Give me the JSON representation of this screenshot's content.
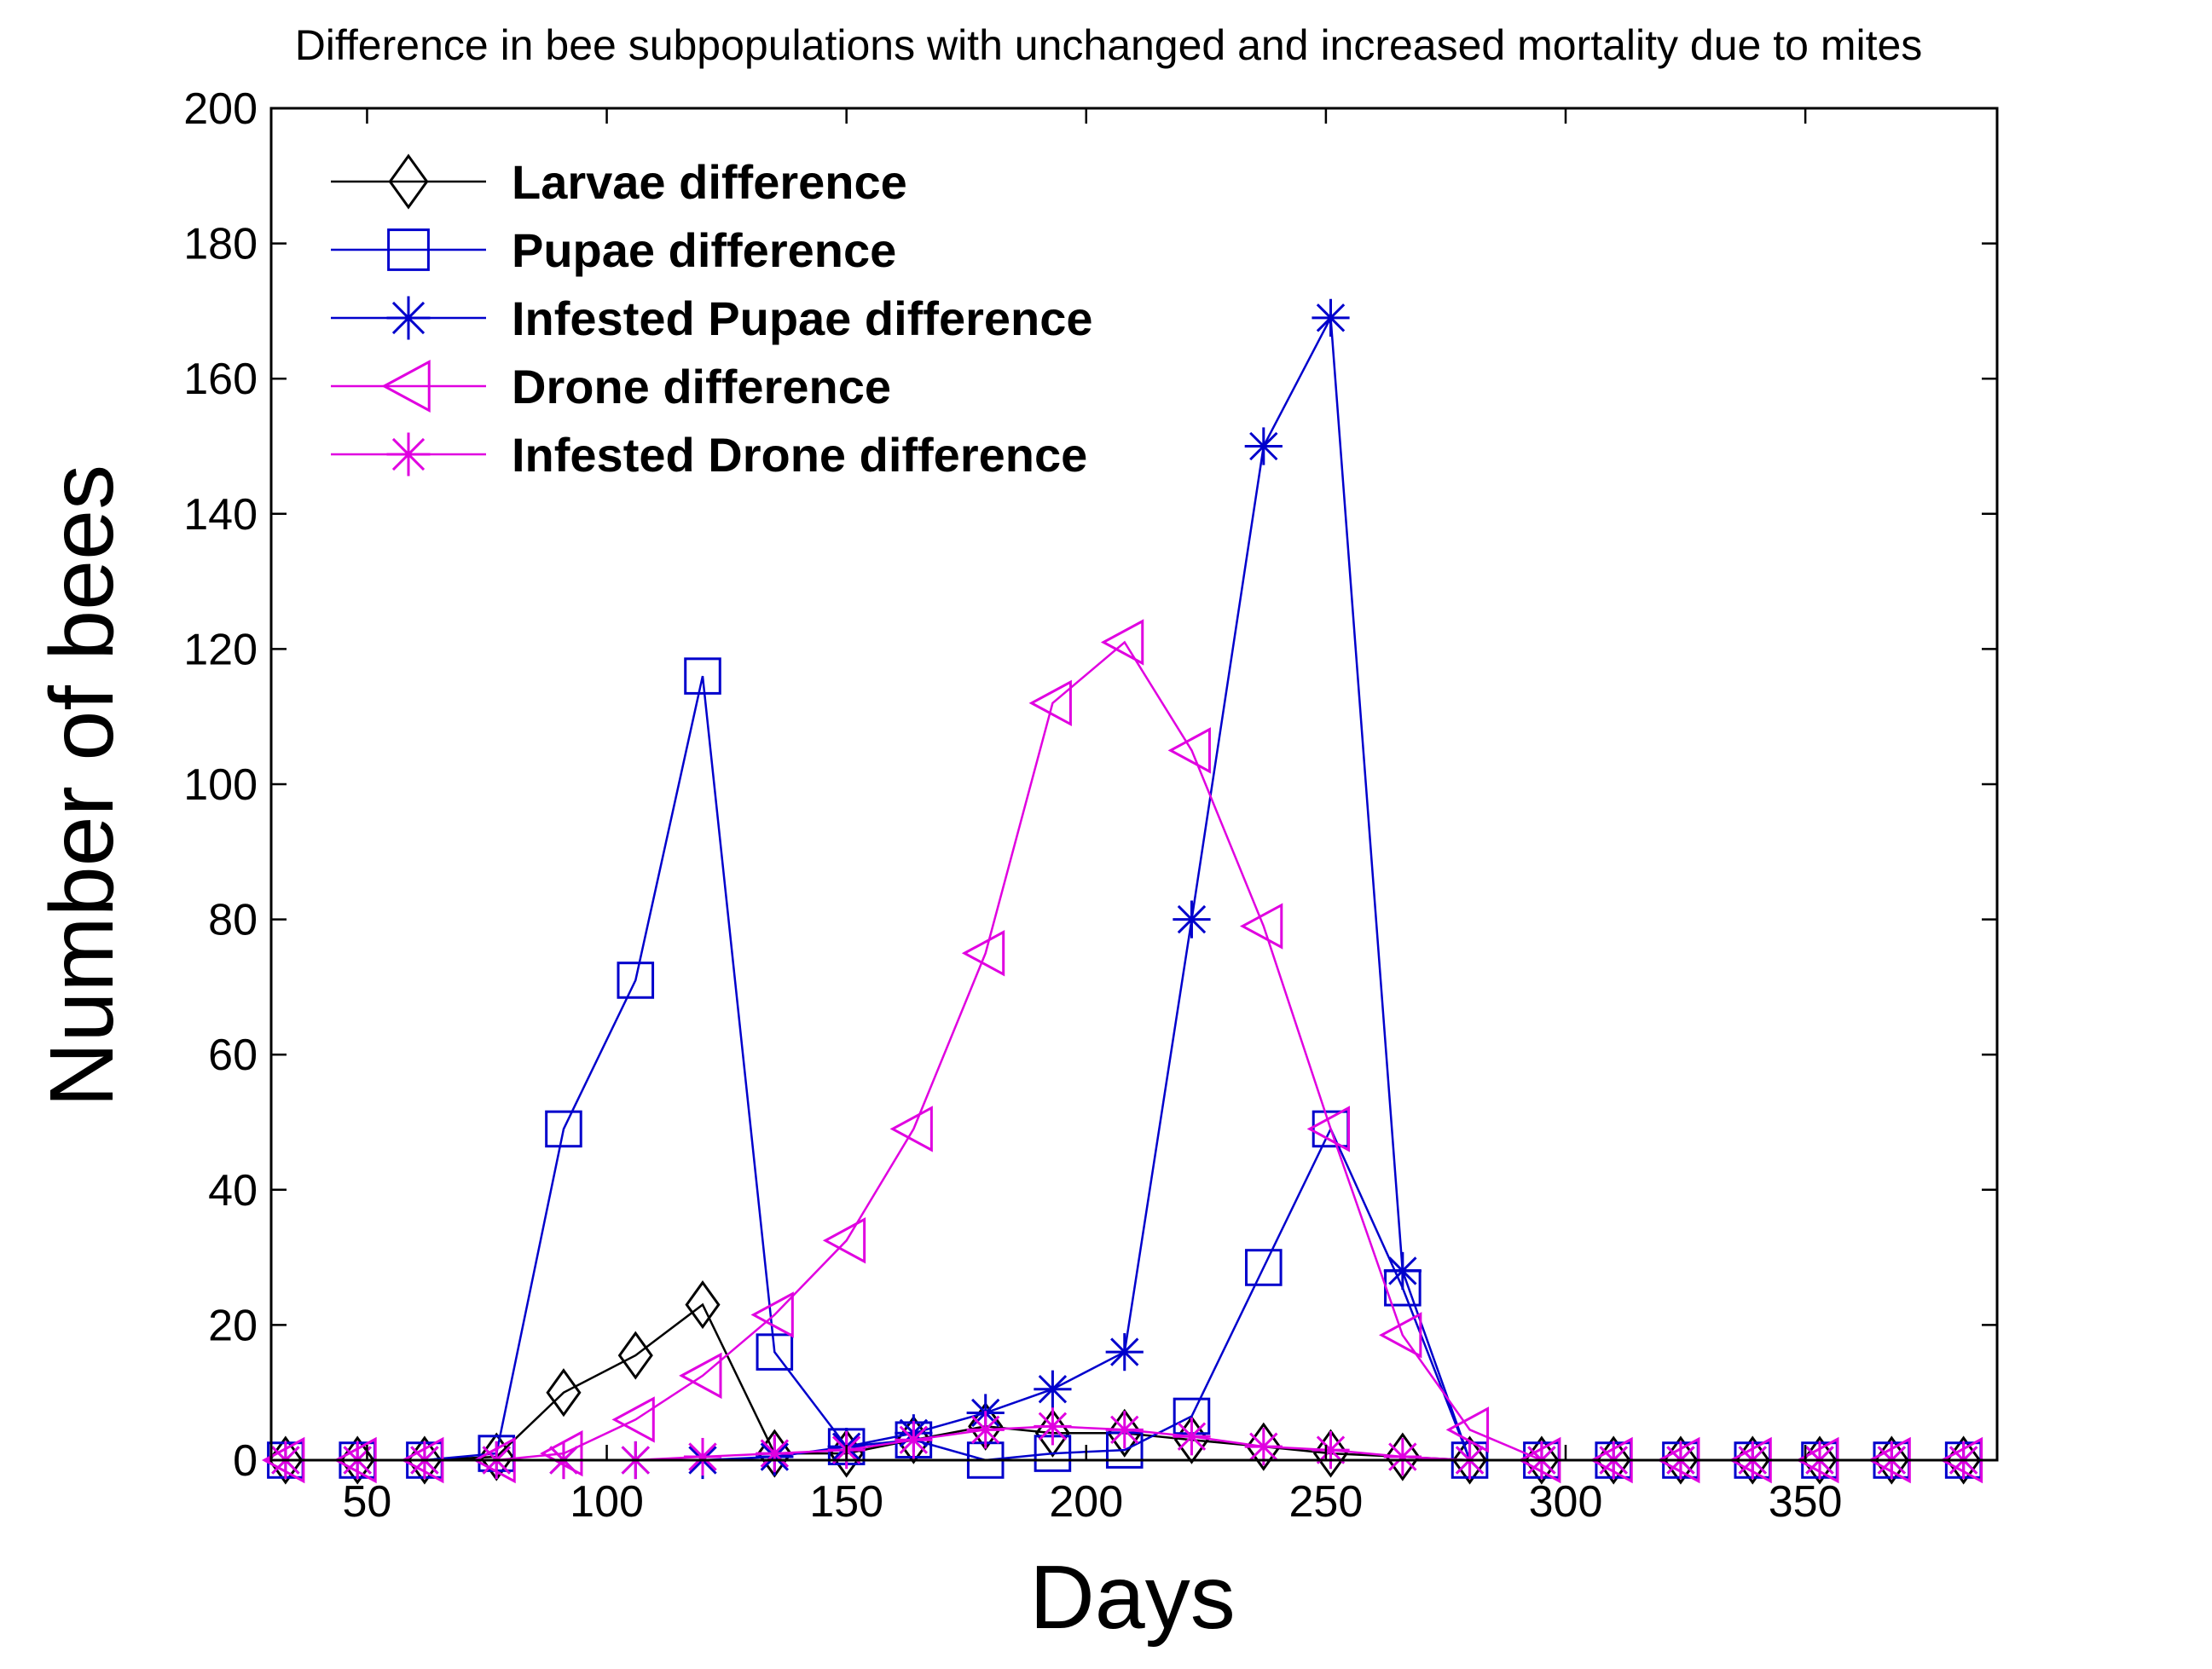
{
  "chart_data": {
    "type": "line",
    "title": "Difference in bee subpopulations with unchanged and increased mortality due to mites",
    "xlabel": "Days",
    "ylabel": "Number of bees",
    "xlim": [
      30,
      390
    ],
    "ylim": [
      0,
      200
    ],
    "xticks": [
      50,
      100,
      150,
      200,
      250,
      300,
      350
    ],
    "yticks": [
      0,
      20,
      40,
      60,
      80,
      100,
      120,
      140,
      160,
      180,
      200
    ],
    "grid": false,
    "legend_position": "top-left",
    "x": [
      33,
      48,
      62,
      77,
      91,
      106,
      120,
      135,
      150,
      164,
      179,
      193,
      208,
      222,
      237,
      251,
      266,
      280,
      295,
      310,
      324,
      339,
      353,
      368,
      383
    ],
    "series": [
      {
        "name": "Larvae difference",
        "color": "#000000",
        "marker": "diamond",
        "values": [
          0,
          0,
          0,
          0.5,
          10,
          15.5,
          23,
          1,
          1,
          3,
          5,
          4,
          4,
          3,
          2,
          1,
          0.5,
          0,
          0,
          0,
          0,
          0,
          0,
          0,
          0
        ]
      },
      {
        "name": "Pupae difference",
        "color": "#0000cc",
        "marker": "square",
        "values": [
          0,
          0,
          0,
          1,
          49,
          71,
          116,
          16,
          2,
          3,
          0,
          1,
          1.5,
          6.5,
          28.5,
          49,
          25.5,
          0,
          0,
          0,
          0,
          0,
          0,
          0,
          0
        ]
      },
      {
        "name": "Infested Pupae difference",
        "color": "#0000cc",
        "marker": "star",
        "values": [
          0,
          0,
          0,
          0,
          0,
          0,
          0,
          0.5,
          2,
          4,
          7,
          10.5,
          16,
          80,
          150,
          169,
          28,
          0,
          0,
          0,
          0,
          0,
          0,
          0,
          0
        ]
      },
      {
        "name": "Drone difference",
        "color": "#e000e0",
        "marker": "triangle-left",
        "values": [
          0,
          0,
          0,
          0,
          1,
          6,
          12.5,
          21.5,
          32.5,
          49,
          75,
          112,
          121,
          105,
          79,
          49,
          18.5,
          4.5,
          0,
          0,
          0,
          0,
          0,
          0,
          0
        ]
      },
      {
        "name": "Infested Drone difference",
        "color": "#e000e0",
        "marker": "star",
        "values": [
          0,
          0,
          0,
          0,
          0,
          0,
          0.5,
          1,
          1.5,
          3,
          4.5,
          5,
          4.5,
          3.5,
          2,
          1.5,
          0.5,
          0,
          0,
          0,
          0,
          0,
          0,
          0,
          0
        ]
      }
    ]
  }
}
